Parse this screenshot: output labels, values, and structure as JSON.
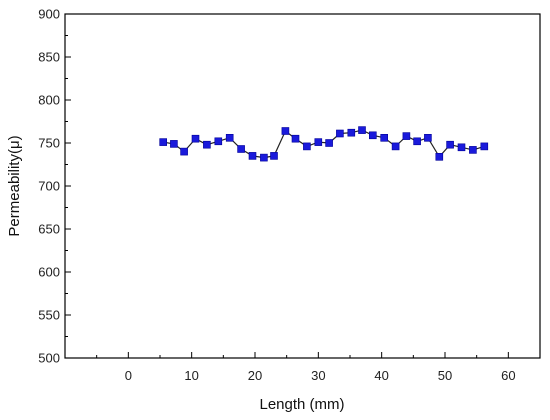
{
  "chart_data": {
    "type": "line",
    "title": "",
    "xlabel": "Length (mm)",
    "ylabel": "Permeability(μ)",
    "xlim": [
      -10,
      65
    ],
    "ylim": [
      500,
      900
    ],
    "xticks": [
      0,
      10,
      20,
      30,
      40,
      50,
      60
    ],
    "yticks": [
      500,
      550,
      600,
      650,
      700,
      750,
      800,
      850,
      900
    ],
    "grid": false,
    "marker": "square",
    "series_color": "#1a1adb",
    "line_color": "#222222",
    "series": [
      {
        "x": [
          5.5,
          7.2,
          8.8,
          10.6,
          12.4,
          14.2,
          16.0,
          17.8,
          19.6,
          21.4,
          23.0,
          24.8,
          26.4,
          28.2,
          30.0,
          31.7,
          33.4,
          35.2,
          36.9,
          38.6,
          40.4,
          42.2,
          43.9,
          45.6,
          47.3,
          49.1,
          50.8,
          52.6,
          54.4,
          56.2
        ],
        "y": [
          751,
          749,
          740,
          755,
          748,
          752,
          756,
          743,
          735,
          733,
          735,
          764,
          755,
          746,
          751,
          750,
          761,
          762,
          765,
          759,
          756,
          746,
          758,
          752,
          756,
          734,
          748,
          745,
          742,
          746
        ]
      }
    ]
  }
}
